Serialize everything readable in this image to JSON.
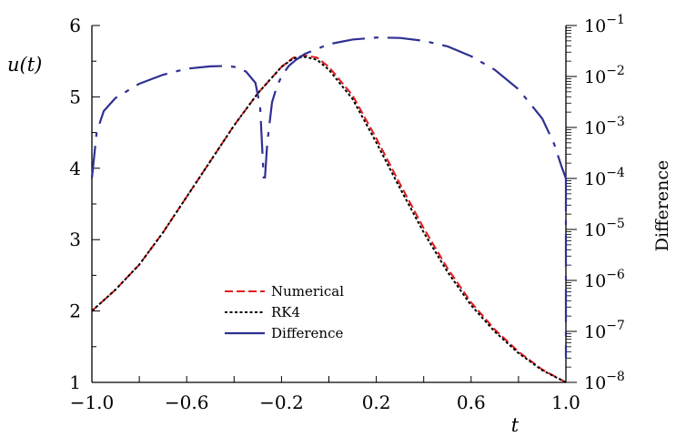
{
  "chart_data": {
    "type": "line",
    "x_axis": {
      "label": "t",
      "range": [
        -1.0,
        1.0
      ],
      "tick_labels": [
        "−1.0",
        "−0.6",
        "−0.2",
        "0.2",
        "0.6",
        "1.0"
      ],
      "tick_values": [
        -1.0,
        -0.6,
        -0.2,
        0.2,
        0.6,
        1.0
      ]
    },
    "y_axis_left": {
      "label": "u(t)",
      "range": [
        1,
        6
      ],
      "tick_labels": [
        "1",
        "2",
        "3",
        "4",
        "5",
        "6"
      ],
      "tick_values": [
        1,
        2,
        3,
        4,
        5,
        6
      ]
    },
    "y_axis_right": {
      "label": "Difference",
      "scale": "log",
      "range": [
        1e-08,
        0.1
      ],
      "tick_labels": [
        {
          "base": "10",
          "exp": "−1"
        },
        {
          "base": "10",
          "exp": "−2"
        },
        {
          "base": "10",
          "exp": "−3"
        },
        {
          "base": "10",
          "exp": "−4"
        },
        {
          "base": "10",
          "exp": "−5"
        },
        {
          "base": "10",
          "exp": "−6"
        },
        {
          "base": "10",
          "exp": "−7"
        },
        {
          "base": "10",
          "exp": "−8"
        }
      ],
      "tick_exponents": [
        -1,
        -2,
        -3,
        -4,
        -5,
        -6,
        -7,
        -8
      ]
    },
    "grid": false,
    "legend": {
      "placement": "lower-center",
      "entries": [
        "Numerical",
        "RK4",
        "Difference"
      ]
    },
    "series": [
      {
        "name": "Numerical",
        "axis": "left",
        "color": "#e41a1c",
        "style": "dashed",
        "x": [
          -1.0,
          -0.9,
          -0.8,
          -0.7,
          -0.6,
          -0.5,
          -0.4,
          -0.3,
          -0.2,
          -0.15,
          -0.1,
          -0.05,
          0.0,
          0.1,
          0.2,
          0.3,
          0.4,
          0.5,
          0.6,
          0.7,
          0.8,
          0.9,
          1.0
        ],
        "y": [
          2.0,
          2.3,
          2.65,
          3.1,
          3.6,
          4.1,
          4.6,
          5.05,
          5.42,
          5.55,
          5.58,
          5.55,
          5.42,
          5.02,
          4.42,
          3.78,
          3.16,
          2.6,
          2.12,
          1.74,
          1.43,
          1.18,
          1.0
        ]
      },
      {
        "name": "RK4",
        "axis": "left",
        "color": "#000000",
        "style": "dotted",
        "x": [
          -1.0,
          -0.9,
          -0.8,
          -0.7,
          -0.6,
          -0.5,
          -0.4,
          -0.3,
          -0.2,
          -0.15,
          -0.1,
          -0.05,
          0.0,
          0.1,
          0.2,
          0.3,
          0.4,
          0.5,
          0.6,
          0.7,
          0.8,
          0.9,
          1.0
        ],
        "y": [
          2.0,
          2.3,
          2.65,
          3.1,
          3.6,
          4.1,
          4.6,
          5.05,
          5.42,
          5.54,
          5.56,
          5.52,
          5.38,
          4.97,
          4.36,
          3.72,
          3.1,
          2.55,
          2.08,
          1.71,
          1.41,
          1.17,
          1.0
        ]
      },
      {
        "name": "Difference",
        "axis": "right",
        "color": "#2e3092",
        "style": "long-dash",
        "segments": [
          {
            "x": [
              -1.0,
              -0.98,
              -0.95,
              -0.9,
              -0.8,
              -0.7,
              -0.6,
              -0.5,
              -0.45,
              -0.4,
              -0.35,
              -0.31,
              -0.29,
              -0.275
            ],
            "y": [
              0.0001,
              0.0008,
              0.0021,
              0.0038,
              0.0072,
              0.0108,
              0.0142,
              0.0158,
              0.016,
              0.0155,
              0.0125,
              0.0075,
              0.0025,
              0.0001
            ]
          },
          {
            "x": [
              -0.27,
              -0.26,
              -0.24,
              -0.22,
              -0.2,
              -0.17,
              -0.14,
              -0.1,
              0.0,
              0.1,
              0.2,
              0.3,
              0.4,
              0.5,
              0.6,
              0.7,
              0.8,
              0.9,
              0.95,
              0.98,
              1.0
            ],
            "y": [
              0.0001,
              0.0005,
              0.0031,
              0.0063,
              0.01,
              0.016,
              0.021,
              0.028,
              0.043,
              0.053,
              0.058,
              0.057,
              0.05,
              0.039,
              0.025,
              0.0135,
              0.0056,
              0.0015,
              0.00048,
              0.00018,
              0.0001
            ]
          },
          {
            "x": [
              1.0,
              1.0
            ],
            "y": [
              0.0001,
              3e-08
            ]
          }
        ]
      }
    ]
  }
}
